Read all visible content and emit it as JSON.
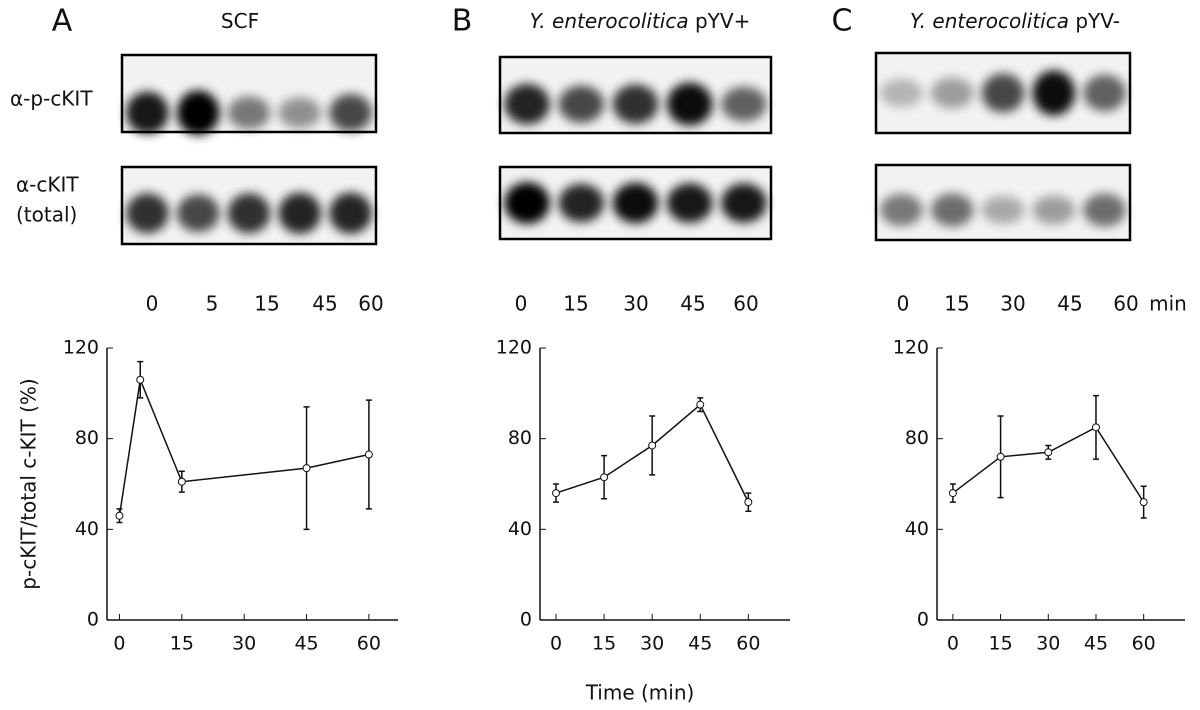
{
  "blot_labels": {
    "phospho": "α-p-cKIT",
    "total": [
      "α-cKIT",
      "(total)"
    ],
    "lane_unit": "min"
  },
  "chart_data": [
    {
      "type": "line",
      "panel_label": "A",
      "title_parts": [
        {
          "text": "SCF"
        }
      ],
      "lanes": [
        "0",
        "5",
        "15",
        "45",
        "60"
      ],
      "y_label": "p-cKIT/total c-KIT (%)",
      "x": [
        0,
        5,
        15,
        45,
        60
      ],
      "values": [
        46,
        106,
        61,
        67,
        73
      ],
      "errors": [
        3,
        8,
        4.6,
        27,
        24
      ],
      "color": "#111111",
      "xlim": [
        -3,
        67
      ],
      "xticks": [
        0,
        15,
        30,
        45,
        60
      ],
      "ylim": [
        0,
        120
      ],
      "yticks": [
        0,
        40,
        80,
        120
      ]
    },
    {
      "type": "line",
      "panel_label": "B",
      "title_parts": [
        {
          "text": "Y. enterocolitica",
          "italic": true
        },
        {
          "text": "pYV+"
        }
      ],
      "lanes": [
        "0",
        "15",
        "30",
        "45",
        "60"
      ],
      "x_label": "Time (min)",
      "x": [
        0,
        15,
        30,
        45,
        60
      ],
      "values": [
        56,
        63,
        77,
        95,
        52
      ],
      "errors": [
        4,
        9.5,
        13,
        3,
        4
      ],
      "color": "#111111",
      "xlim": [
        -5,
        73
      ],
      "xticks": [
        0,
        15,
        30,
        45,
        60
      ],
      "ylim": [
        0,
        120
      ],
      "yticks": [
        0,
        40,
        80,
        120
      ]
    },
    {
      "type": "line",
      "panel_label": "C",
      "title_parts": [
        {
          "text": "Y. enterocolitica",
          "italic": true
        },
        {
          "text": "pYV-"
        }
      ],
      "lanes": [
        "0",
        "15",
        "30",
        "45",
        "60"
      ],
      "x": [
        0,
        15,
        30,
        45,
        60
      ],
      "values": [
        56,
        72,
        74,
        85,
        52
      ],
      "errors": [
        4,
        18,
        3,
        14,
        7
      ],
      "color": "#111111",
      "xlim": [
        -5,
        73
      ],
      "xticks": [
        0,
        15,
        30,
        45,
        60
      ],
      "ylim": [
        0,
        120
      ],
      "yticks": [
        0,
        40,
        80,
        120
      ]
    }
  ]
}
